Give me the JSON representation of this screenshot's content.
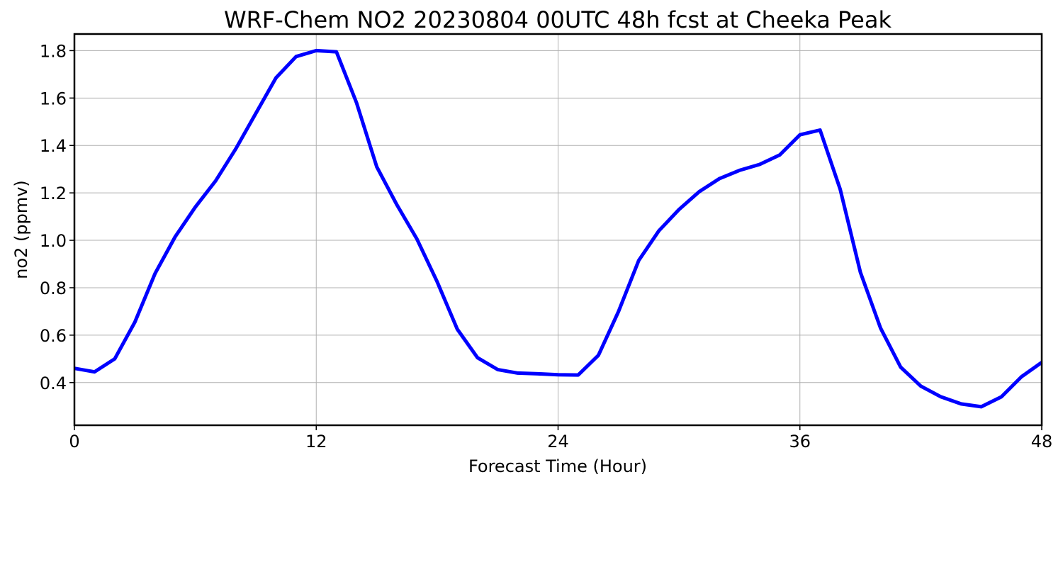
{
  "chart_data": {
    "type": "line",
    "title": "WRF-Chem NO2  20230804 00UTC 48h fcst at Cheeka Peak",
    "xlabel": "Forecast Time (Hour)",
    "ylabel": "no2  (ppmv)",
    "xlim": [
      0,
      48
    ],
    "ylim": [
      0.22,
      1.87
    ],
    "xticks": [
      0,
      12,
      24,
      36,
      48
    ],
    "xtick_labels": [
      "0",
      "12",
      "24",
      "36",
      "48"
    ],
    "yticks": [
      0.4,
      0.6,
      0.8,
      1.0,
      1.2,
      1.4,
      1.6,
      1.8
    ],
    "ytick_labels": [
      "0.4",
      "0.6",
      "0.8",
      "1.0",
      "1.2",
      "1.4",
      "1.6",
      "1.8"
    ],
    "grid": true,
    "line_color": "#0000ff",
    "series": [
      {
        "x": [
          0,
          1,
          2,
          3,
          4,
          5,
          6,
          7,
          8,
          9,
          10,
          11,
          12,
          13,
          14,
          15,
          16,
          17,
          18,
          19,
          20,
          21,
          22,
          23,
          24,
          25,
          26,
          27,
          28,
          29,
          30,
          31,
          32,
          33,
          34,
          35,
          36,
          37,
          38,
          39,
          40,
          41,
          42,
          43,
          44,
          45,
          46,
          47,
          48
        ],
        "values": [
          0.46,
          0.445,
          0.5,
          0.655,
          0.86,
          1.015,
          1.14,
          1.25,
          1.385,
          1.535,
          1.685,
          1.775,
          1.8,
          1.795,
          1.58,
          1.31,
          1.15,
          1.005,
          0.825,
          0.625,
          0.505,
          0.455,
          0.44,
          0.437,
          0.433,
          0.432,
          0.515,
          0.7,
          0.915,
          1.04,
          1.13,
          1.205,
          1.26,
          1.295,
          1.32,
          1.36,
          1.445,
          1.465,
          1.215,
          0.865,
          0.63,
          0.465,
          0.385,
          0.34,
          0.31,
          0.298,
          0.34,
          0.425,
          0.485
        ]
      }
    ]
  }
}
